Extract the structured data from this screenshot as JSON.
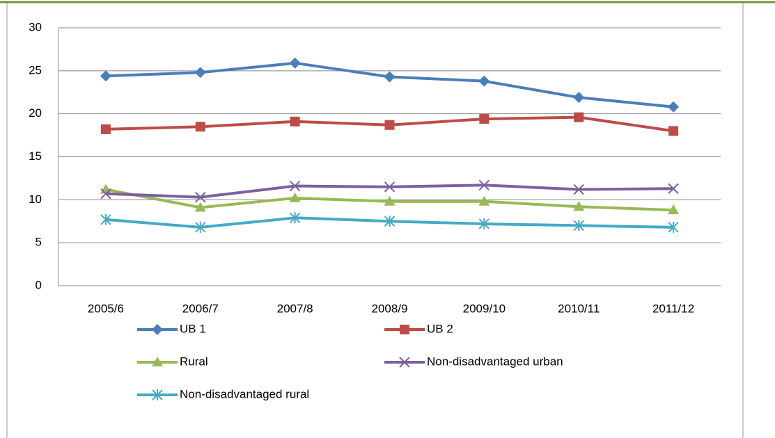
{
  "chart_data": {
    "type": "line",
    "categories": [
      "2005/6",
      "2006/7",
      "2007/8",
      "2008/9",
      "2009/10",
      "2010/11",
      "2011/12"
    ],
    "series": [
      {
        "name": "UB 1",
        "color": "#4a7ebb",
        "marker": "diamond",
        "values": [
          24.4,
          24.8,
          25.9,
          24.3,
          23.8,
          21.9,
          20.8
        ]
      },
      {
        "name": "UB 2",
        "color": "#be4b48",
        "marker": "square",
        "values": [
          18.2,
          18.5,
          19.1,
          18.7,
          19.4,
          19.6,
          18.0
        ]
      },
      {
        "name": "Rural",
        "color": "#98b954",
        "marker": "triangle",
        "values": [
          11.2,
          9.1,
          10.2,
          9.8,
          9.8,
          9.2,
          8.8
        ]
      },
      {
        "name": "Non-disadvantaged urban",
        "color": "#7d60a0",
        "marker": "x",
        "values": [
          10.7,
          10.3,
          11.6,
          11.5,
          11.7,
          11.2,
          11.3
        ]
      },
      {
        "name": "Non-disadvantaged rural",
        "color": "#46aac5",
        "marker": "asterisk",
        "values": [
          7.7,
          6.8,
          7.9,
          7.5,
          7.2,
          7.0,
          6.8
        ]
      }
    ],
    "ylim": [
      0,
      30
    ],
    "yticks": [
      0,
      5,
      10,
      15,
      20,
      25,
      30
    ],
    "grid": true,
    "legend": "bottom"
  }
}
